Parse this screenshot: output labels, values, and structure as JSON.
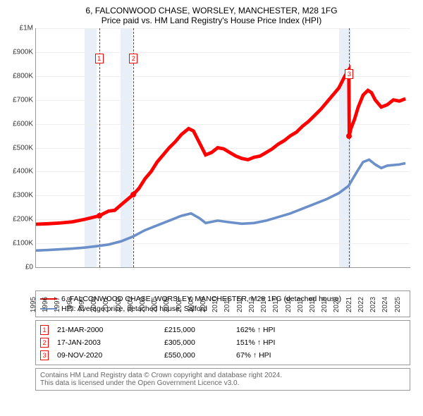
{
  "title": "6, FALCONWOOD CHASE, WORSLEY, MANCHESTER, M28 1FG",
  "subtitle": "Price paid vs. HM Land Registry's House Price Index (HPI)",
  "chart": {
    "type": "line",
    "ylim": [
      0,
      1000000
    ],
    "yticks": [
      0,
      100000,
      200000,
      300000,
      400000,
      500000,
      600000,
      700000,
      800000,
      900000,
      1000000
    ],
    "ytick_labels": [
      "£0",
      "£100K",
      "£200K",
      "£300K",
      "£400K",
      "£500K",
      "£600K",
      "£700K",
      "£800K",
      "£900K",
      "£1M"
    ],
    "xlim": [
      1995,
      2025.9
    ],
    "xticks": [
      1995,
      1996,
      1997,
      1998,
      1999,
      2000,
      2001,
      2002,
      2003,
      2004,
      2005,
      2006,
      2007,
      2008,
      2009,
      2010,
      2011,
      2012,
      2013,
      2014,
      2015,
      2016,
      2017,
      2018,
      2019,
      2020,
      2021,
      2022,
      2023,
      2024,
      2025
    ],
    "grid_color": "#eeeeee",
    "background_color": "#ffffff",
    "shade_color": "#e8eff9",
    "shade_bands": [
      [
        1999,
        2000
      ],
      [
        2002,
        2003
      ],
      [
        2020,
        2021
      ]
    ],
    "series": [
      {
        "name": "6, FALCONWOOD CHASE, WORSLEY, MANCHESTER, M28 1FG (detached house)",
        "color": "#ff0000",
        "width": 1.6,
        "points": [
          [
            1995,
            180000
          ],
          [
            1996,
            182000
          ],
          [
            1997,
            185000
          ],
          [
            1998,
            190000
          ],
          [
            1999,
            200000
          ],
          [
            2000.22,
            215000
          ],
          [
            2000.6,
            225000
          ],
          [
            2001,
            235000
          ],
          [
            2001.5,
            238000
          ],
          [
            2002,
            260000
          ],
          [
            2003.05,
            305000
          ],
          [
            2003.5,
            330000
          ],
          [
            2004,
            370000
          ],
          [
            2004.5,
            400000
          ],
          [
            2005,
            440000
          ],
          [
            2005.5,
            470000
          ],
          [
            2006,
            500000
          ],
          [
            2006.5,
            525000
          ],
          [
            2007,
            555000
          ],
          [
            2007.6,
            580000
          ],
          [
            2008,
            570000
          ],
          [
            2008.5,
            520000
          ],
          [
            2009,
            470000
          ],
          [
            2009.5,
            480000
          ],
          [
            2010,
            500000
          ],
          [
            2010.5,
            495000
          ],
          [
            2011,
            480000
          ],
          [
            2011.5,
            465000
          ],
          [
            2012,
            455000
          ],
          [
            2012.5,
            450000
          ],
          [
            2013,
            460000
          ],
          [
            2013.5,
            465000
          ],
          [
            2014,
            480000
          ],
          [
            2014.5,
            495000
          ],
          [
            2015,
            515000
          ],
          [
            2015.5,
            530000
          ],
          [
            2016,
            550000
          ],
          [
            2016.5,
            565000
          ],
          [
            2017,
            590000
          ],
          [
            2017.5,
            610000
          ],
          [
            2018,
            635000
          ],
          [
            2018.5,
            660000
          ],
          [
            2019,
            690000
          ],
          [
            2019.5,
            720000
          ],
          [
            2020,
            750000
          ],
          [
            2020.5,
            800000
          ],
          [
            2020.82,
            825000
          ],
          [
            2020.86,
            550000
          ],
          [
            2021,
            580000
          ],
          [
            2021.3,
            620000
          ],
          [
            2021.6,
            670000
          ],
          [
            2022,
            720000
          ],
          [
            2022.4,
            740000
          ],
          [
            2022.7,
            730000
          ],
          [
            2023,
            700000
          ],
          [
            2023.5,
            670000
          ],
          [
            2024,
            680000
          ],
          [
            2024.5,
            700000
          ],
          [
            2025,
            695000
          ],
          [
            2025.5,
            705000
          ]
        ]
      },
      {
        "name": "HPI: Average price, detached house, Salford",
        "color": "#6a8fc9",
        "width": 1.2,
        "points": [
          [
            1995,
            70000
          ],
          [
            1996,
            72000
          ],
          [
            1997,
            75000
          ],
          [
            1998,
            78000
          ],
          [
            1999,
            82000
          ],
          [
            2000,
            88000
          ],
          [
            2001,
            95000
          ],
          [
            2002,
            108000
          ],
          [
            2003,
            128000
          ],
          [
            2004,
            155000
          ],
          [
            2005,
            175000
          ],
          [
            2006,
            195000
          ],
          [
            2007,
            215000
          ],
          [
            2007.8,
            225000
          ],
          [
            2008.5,
            205000
          ],
          [
            2009,
            185000
          ],
          [
            2010,
            195000
          ],
          [
            2011,
            188000
          ],
          [
            2012,
            182000
          ],
          [
            2013,
            185000
          ],
          [
            2014,
            195000
          ],
          [
            2015,
            210000
          ],
          [
            2016,
            225000
          ],
          [
            2017,
            245000
          ],
          [
            2018,
            265000
          ],
          [
            2019,
            285000
          ],
          [
            2020,
            310000
          ],
          [
            2020.8,
            340000
          ],
          [
            2021.5,
            400000
          ],
          [
            2022,
            440000
          ],
          [
            2022.5,
            450000
          ],
          [
            2023,
            430000
          ],
          [
            2023.5,
            415000
          ],
          [
            2024,
            425000
          ],
          [
            2025,
            430000
          ],
          [
            2025.5,
            435000
          ]
        ]
      }
    ],
    "transaction_markers": [
      {
        "idx": "1",
        "x": 2000.22,
        "box_y": 895000,
        "dot_y": 215000
      },
      {
        "idx": "2",
        "x": 2003.05,
        "box_y": 895000,
        "dot_y": 305000
      },
      {
        "idx": "3",
        "x": 2020.86,
        "box_y": 830000,
        "dot_y": 550000
      }
    ],
    "tick_fontsize": 10,
    "label_color": "#333333"
  },
  "legend": {
    "items": [
      {
        "color": "#ff0000",
        "label": "6, FALCONWOOD CHASE, WORSLEY, MANCHESTER, M28 1FG (detached house)"
      },
      {
        "color": "#6a8fc9",
        "label": "HPI: Average price, detached house, Salford"
      }
    ]
  },
  "transactions": [
    {
      "idx": "1",
      "date": "21-MAR-2000",
      "price": "£215,000",
      "pct": "162% ↑ HPI"
    },
    {
      "idx": "2",
      "date": "17-JAN-2003",
      "price": "£305,000",
      "pct": "151% ↑ HPI"
    },
    {
      "idx": "3",
      "date": "09-NOV-2020",
      "price": "£550,000",
      "pct": "67% ↑ HPI"
    }
  ],
  "footer": {
    "line1": "Contains HM Land Registry data © Crown copyright and database right 2024.",
    "line2": "This data is licensed under the Open Government Licence v3.0."
  }
}
